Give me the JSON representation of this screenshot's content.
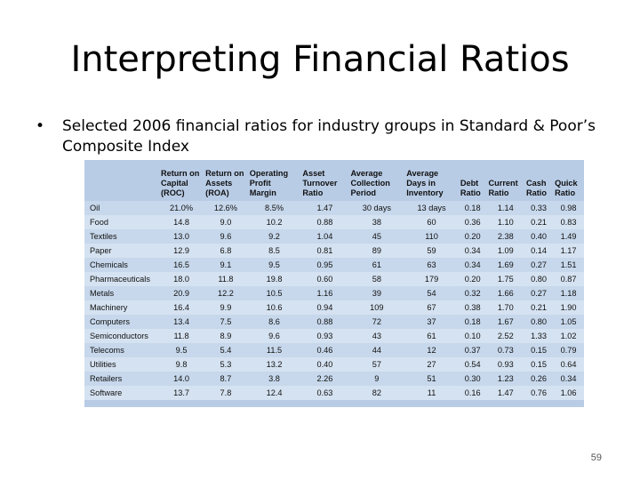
{
  "slide": {
    "title": "Interpreting Financial Ratios",
    "bullet": "Selected 2006 financial ratios for industry groups in Standard & Poor’s Composite Index",
    "page_number": "59"
  },
  "table": {
    "headers": [
      "",
      "Return on Capital (ROC)",
      "Return on Assets (ROA)",
      "Operating Profit Margin",
      "Asset Turnover Ratio",
      "Average Collection Period",
      "Average Days in Inventory",
      "Debt Ratio",
      "Current Ratio",
      "Cash Ratio",
      "Quick Ratio"
    ],
    "rows": [
      [
        "Oil",
        "21.0%",
        "12.6%",
        "8.5%",
        "1.47",
        "30 days",
        "13 days",
        "0.18",
        "1.14",
        "0.33",
        "0.98"
      ],
      [
        "Food",
        "14.8",
        "9.0",
        "10.2",
        "0.88",
        "38",
        "60",
        "0.36",
        "1.10",
        "0.21",
        "0.83"
      ],
      [
        "Textiles",
        "13.0",
        "9.6",
        "9.2",
        "1.04",
        "45",
        "110",
        "0.20",
        "2.38",
        "0.40",
        "1.49"
      ],
      [
        "Paper",
        "12.9",
        "6.8",
        "8.5",
        "0.81",
        "89",
        "59",
        "0.34",
        "1.09",
        "0.14",
        "1.17"
      ],
      [
        "Chemicals",
        "16.5",
        "9.1",
        "9.5",
        "0.95",
        "61",
        "63",
        "0.34",
        "1.69",
        "0.27",
        "1.51"
      ],
      [
        "Pharmaceuticals",
        "18.0",
        "11.8",
        "19.8",
        "0.60",
        "58",
        "179",
        "0.20",
        "1.75",
        "0.80",
        "0.87"
      ],
      [
        "Metals",
        "20.9",
        "12.2",
        "10.5",
        "1.16",
        "39",
        "54",
        "0.32",
        "1.66",
        "0.27",
        "1.18"
      ],
      [
        "Machinery",
        "16.4",
        "9.9",
        "10.6",
        "0.94",
        "109",
        "67",
        "0.38",
        "1.70",
        "0.21",
        "1.90"
      ],
      [
        "Computers",
        "13.4",
        "7.5",
        "8.6",
        "0.88",
        "72",
        "37",
        "0.18",
        "1.67",
        "0.80",
        "1.05"
      ],
      [
        "Semiconductors",
        "11.8",
        "8.9",
        "9.6",
        "0.93",
        "43",
        "61",
        "0.10",
        "2.52",
        "1.33",
        "1.02"
      ],
      [
        "Telecoms",
        "9.5",
        "5.4",
        "11.5",
        "0.46",
        "44",
        "12",
        "0.37",
        "0.73",
        "0.15",
        "0.79"
      ],
      [
        "Utilities",
        "9.8",
        "5.3",
        "13.2",
        "0.40",
        "57",
        "27",
        "0.54",
        "0.93",
        "0.15",
        "0.64"
      ],
      [
        "Retailers",
        "14.0",
        "8.7",
        "3.8",
        "2.26",
        "9",
        "51",
        "0.30",
        "1.23",
        "0.26",
        "0.34"
      ],
      [
        "Software",
        "13.7",
        "7.8",
        "12.4",
        "0.63",
        "82",
        "11",
        "0.16",
        "1.47",
        "0.76",
        "1.06"
      ]
    ]
  }
}
